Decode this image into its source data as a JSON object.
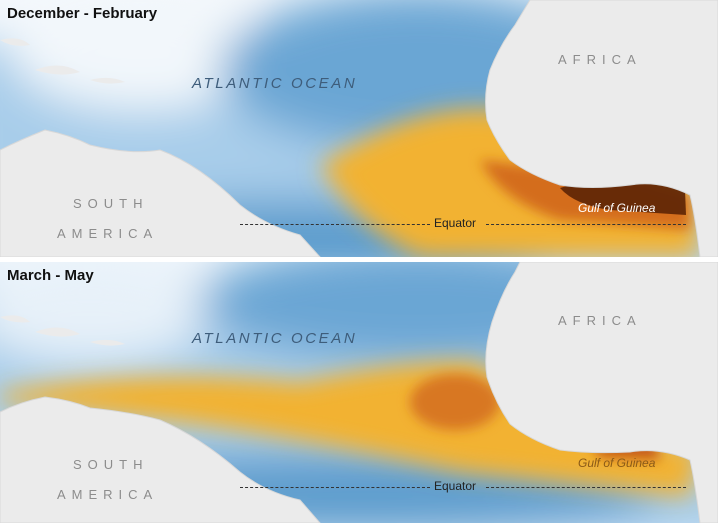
{
  "panels": [
    {
      "season": "December - February",
      "ocean_label": "ATLANTIC OCEAN",
      "continent_labels": {
        "south_america_1": "SOUTH",
        "south_america_2": "AMERICA",
        "africa": "AFRICA"
      },
      "gulf_label": "Gulf of Guinea",
      "equator_label": "Equator"
    },
    {
      "season": "March - May",
      "ocean_label": "ATLANTIC OCEAN",
      "continent_labels": {
        "south_america_1": "SOUTH",
        "south_america_2": "AMERICA",
        "africa": "AFRICA"
      },
      "gulf_label": "Gulf of Guinea",
      "equator_label": "Equator"
    }
  ],
  "colors": {
    "land": "#ebebeb",
    "ocean_low": "#ffffff",
    "ocean_mid": "#9ec8e6",
    "ocean_blue": "#5b9ccd",
    "high": "#f2b233",
    "higher": "#d46d1c",
    "highest": "#5c2405"
  }
}
